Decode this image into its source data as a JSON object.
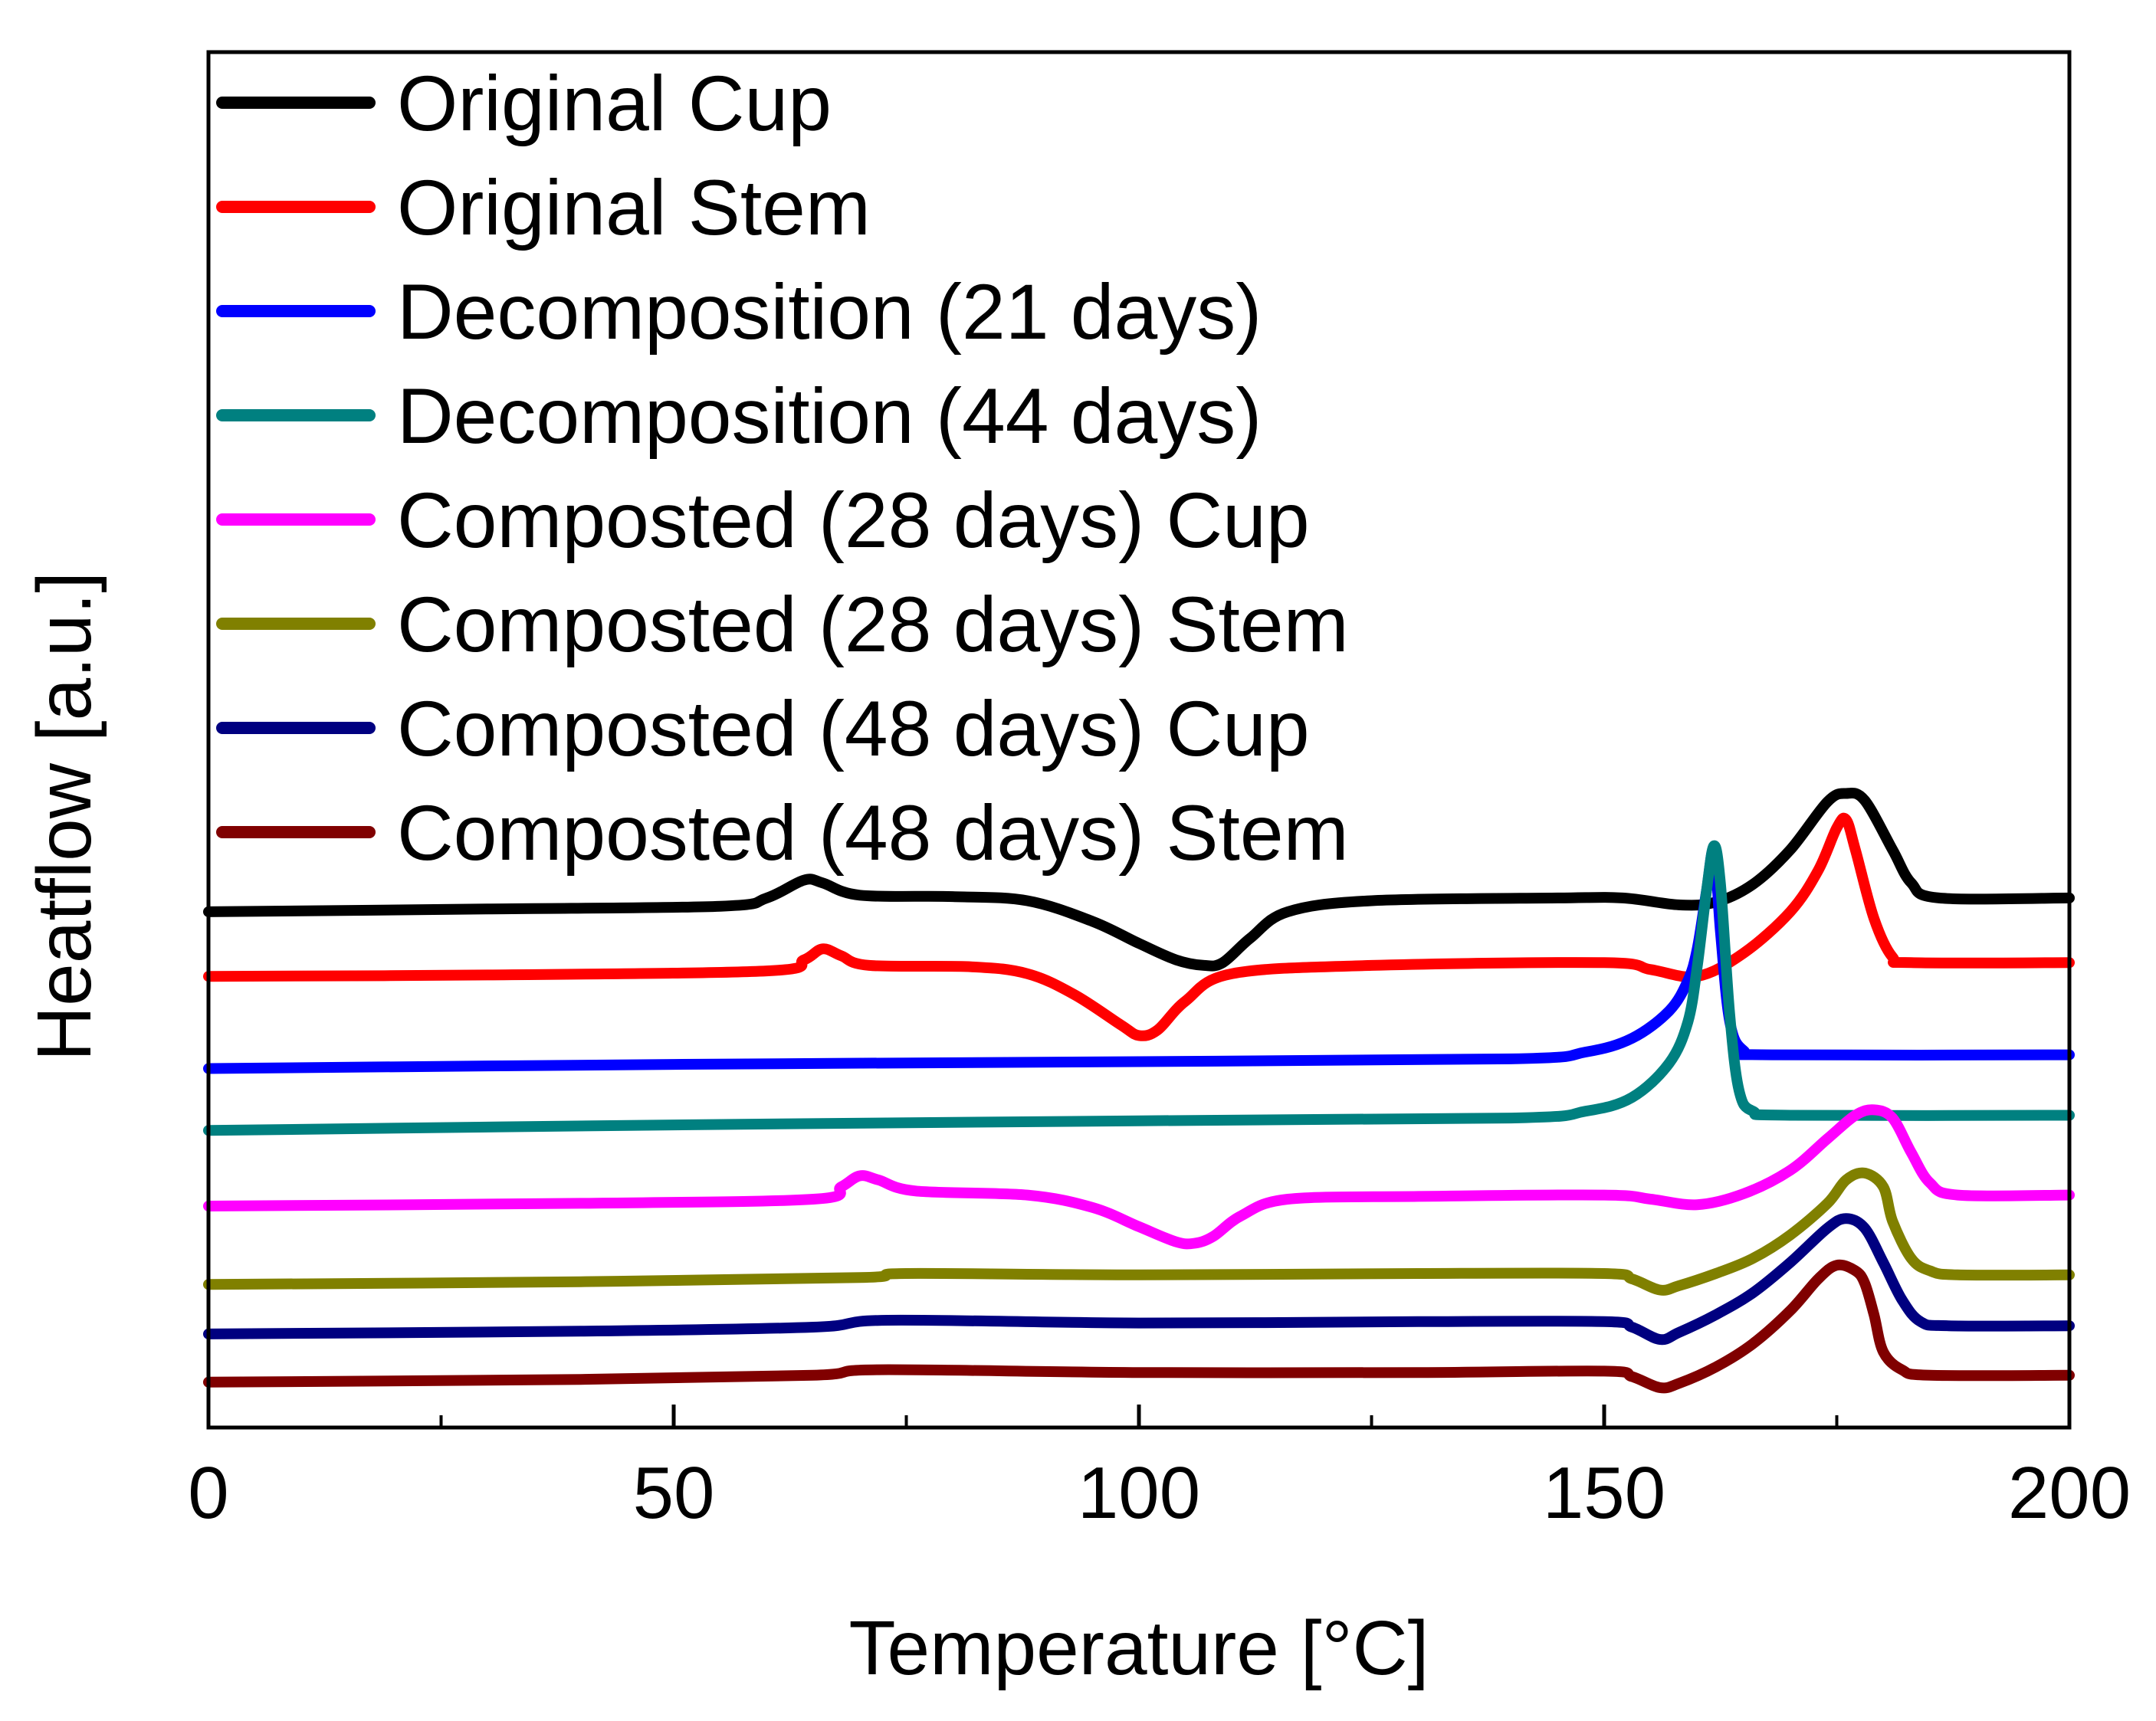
{
  "chart_data": {
    "type": "line",
    "title": "",
    "xlabel": "Temperature [°C]",
    "ylabel": "Heatflow [a.u.]",
    "xlim": [
      0,
      200
    ],
    "ylim": [
      0,
      100
    ],
    "x_ticks": [
      "0",
      "50",
      "100",
      "150",
      "200"
    ],
    "x_tick_values": [
      0,
      50,
      100,
      150,
      200
    ],
    "x_minor_tick_values": [
      25,
      75,
      125,
      175
    ],
    "y_ticks_shown": false,
    "grid": false,
    "legend_position": "top-left",
    "series": [
      {
        "name": "Original Cup",
        "color": "#000000",
        "points": [
          [
            0,
            37.5
          ],
          [
            30,
            37.7
          ],
          [
            55,
            37.9
          ],
          [
            60,
            38.5
          ],
          [
            64,
            39.8
          ],
          [
            66,
            39.6
          ],
          [
            70,
            38.7
          ],
          [
            80,
            38.6
          ],
          [
            88,
            38.3
          ],
          [
            95,
            36.8
          ],
          [
            100,
            35.2
          ],
          [
            104,
            34.0
          ],
          [
            107,
            33.6
          ],
          [
            109,
            33.8
          ],
          [
            112,
            35.6
          ],
          [
            116,
            37.5
          ],
          [
            125,
            38.3
          ],
          [
            145,
            38.5
          ],
          [
            152,
            38.5
          ],
          [
            158,
            38.0
          ],
          [
            162,
            38.2
          ],
          [
            166,
            39.5
          ],
          [
            170,
            42.0
          ],
          [
            174,
            45.5
          ],
          [
            176,
            46.1
          ],
          [
            178,
            45.6
          ],
          [
            181,
            42.0
          ],
          [
            183,
            39.6
          ],
          [
            186,
            38.5
          ],
          [
            200,
            38.5
          ]
        ]
      },
      {
        "name": "Original Stem",
        "color": "#ff0000",
        "points": [
          [
            0,
            32.8
          ],
          [
            30,
            32.9
          ],
          [
            60,
            33.2
          ],
          [
            64,
            34.0
          ],
          [
            66,
            34.8
          ],
          [
            68,
            34.3
          ],
          [
            71,
            33.6
          ],
          [
            82,
            33.5
          ],
          [
            88,
            33.0
          ],
          [
            93,
            31.5
          ],
          [
            98,
            29.3
          ],
          [
            100,
            28.5
          ],
          [
            102,
            28.9
          ],
          [
            105,
            31.0
          ],
          [
            110,
            33.0
          ],
          [
            125,
            33.6
          ],
          [
            150,
            33.8
          ],
          [
            155,
            33.3
          ],
          [
            160,
            32.8
          ],
          [
            165,
            34.5
          ],
          [
            170,
            37.5
          ],
          [
            173,
            40.5
          ],
          [
            175,
            43.6
          ],
          [
            176,
            44.2
          ],
          [
            177,
            42.0
          ],
          [
            179,
            37.0
          ],
          [
            181,
            34.2
          ],
          [
            183,
            33.8
          ],
          [
            200,
            33.8
          ]
        ]
      },
      {
        "name": "Decomposition (21 days)",
        "color": "#0000ff",
        "points": [
          [
            0,
            26.1
          ],
          [
            50,
            26.4
          ],
          [
            100,
            26.6
          ],
          [
            140,
            26.8
          ],
          [
            148,
            27.3
          ],
          [
            153,
            28.3
          ],
          [
            157,
            30.3
          ],
          [
            159,
            32.5
          ],
          [
            160,
            34.8
          ],
          [
            161,
            39.0
          ],
          [
            161.8,
            42.0
          ],
          [
            162.5,
            36.0
          ],
          [
            163.5,
            29.5
          ],
          [
            165,
            27.4
          ],
          [
            168,
            27.1
          ],
          [
            200,
            27.1
          ]
        ]
      },
      {
        "name": "Decomposition (44 days)",
        "color": "#008080",
        "points": [
          [
            0,
            21.6
          ],
          [
            50,
            22.0
          ],
          [
            100,
            22.3
          ],
          [
            140,
            22.5
          ],
          [
            148,
            23.0
          ],
          [
            153,
            24.0
          ],
          [
            157,
            26.5
          ],
          [
            159,
            29.5
          ],
          [
            160,
            33.5
          ],
          [
            161,
            39.0
          ],
          [
            161.8,
            42.3
          ],
          [
            162.5,
            39.5
          ],
          [
            163.5,
            30.0
          ],
          [
            164.5,
            24.5
          ],
          [
            166,
            23.0
          ],
          [
            170,
            22.7
          ],
          [
            200,
            22.7
          ]
        ]
      },
      {
        "name": "Composted (28 days) Cup",
        "color": "#ff00ff",
        "points": [
          [
            0,
            16.1
          ],
          [
            40,
            16.3
          ],
          [
            65,
            16.6
          ],
          [
            68,
            17.5
          ],
          [
            70,
            18.3
          ],
          [
            72,
            18.0
          ],
          [
            76,
            17.2
          ],
          [
            88,
            16.9
          ],
          [
            95,
            16.0
          ],
          [
            100,
            14.6
          ],
          [
            104,
            13.5
          ],
          [
            106,
            13.4
          ],
          [
            108,
            13.9
          ],
          [
            111,
            15.4
          ],
          [
            116,
            16.6
          ],
          [
            130,
            16.8
          ],
          [
            150,
            16.9
          ],
          [
            155,
            16.6
          ],
          [
            160,
            16.2
          ],
          [
            165,
            17.0
          ],
          [
            170,
            18.7
          ],
          [
            174,
            21.0
          ],
          [
            177,
            22.7
          ],
          [
            179,
            23.1
          ],
          [
            181,
            22.5
          ],
          [
            183,
            20.0
          ],
          [
            185,
            17.8
          ],
          [
            188,
            16.9
          ],
          [
            200,
            16.9
          ]
        ]
      },
      {
        "name": "Composted (28 days) Stem",
        "color": "#808000",
        "points": [
          [
            0,
            10.4
          ],
          [
            40,
            10.6
          ],
          [
            70,
            10.9
          ],
          [
            75,
            11.2
          ],
          [
            100,
            11.1
          ],
          [
            130,
            11.2
          ],
          [
            150,
            11.2
          ],
          [
            153,
            10.8
          ],
          [
            156,
            10.0
          ],
          [
            158,
            10.3
          ],
          [
            162,
            11.2
          ],
          [
            166,
            12.3
          ],
          [
            170,
            14.0
          ],
          [
            174,
            16.3
          ],
          [
            176,
            18.0
          ],
          [
            178,
            18.5
          ],
          [
            180,
            17.5
          ],
          [
            181,
            15.0
          ],
          [
            183,
            12.3
          ],
          [
            185,
            11.4
          ],
          [
            188,
            11.1
          ],
          [
            200,
            11.1
          ]
        ]
      },
      {
        "name": "Composted (48 days) Cup",
        "color": "#000080",
        "points": [
          [
            0,
            6.8
          ],
          [
            40,
            7.0
          ],
          [
            65,
            7.3
          ],
          [
            73,
            7.8
          ],
          [
            100,
            7.6
          ],
          [
            130,
            7.7
          ],
          [
            150,
            7.7
          ],
          [
            153,
            7.3
          ],
          [
            156,
            6.4
          ],
          [
            158,
            6.9
          ],
          [
            162,
            8.2
          ],
          [
            166,
            9.8
          ],
          [
            170,
            12.0
          ],
          [
            174,
            14.5
          ],
          [
            176,
            15.2
          ],
          [
            178,
            14.5
          ],
          [
            180,
            12.0
          ],
          [
            182,
            9.3
          ],
          [
            184,
            7.7
          ],
          [
            187,
            7.4
          ],
          [
            200,
            7.4
          ]
        ]
      },
      {
        "name": "Composted (48 days) Stem",
        "color": "#800000",
        "points": [
          [
            0,
            3.3
          ],
          [
            40,
            3.5
          ],
          [
            65,
            3.8
          ],
          [
            72,
            4.2
          ],
          [
            100,
            4.0
          ],
          [
            130,
            4.0
          ],
          [
            150,
            4.1
          ],
          [
            153,
            3.7
          ],
          [
            156,
            2.9
          ],
          [
            158,
            3.2
          ],
          [
            162,
            4.4
          ],
          [
            166,
            6.1
          ],
          [
            170,
            8.5
          ],
          [
            173,
            10.8
          ],
          [
            175,
            11.8
          ],
          [
            177,
            11.4
          ],
          [
            178,
            10.5
          ],
          [
            179,
            8.2
          ],
          [
            180,
            5.5
          ],
          [
            182,
            4.2
          ],
          [
            185,
            3.8
          ],
          [
            200,
            3.8
          ]
        ]
      }
    ]
  }
}
